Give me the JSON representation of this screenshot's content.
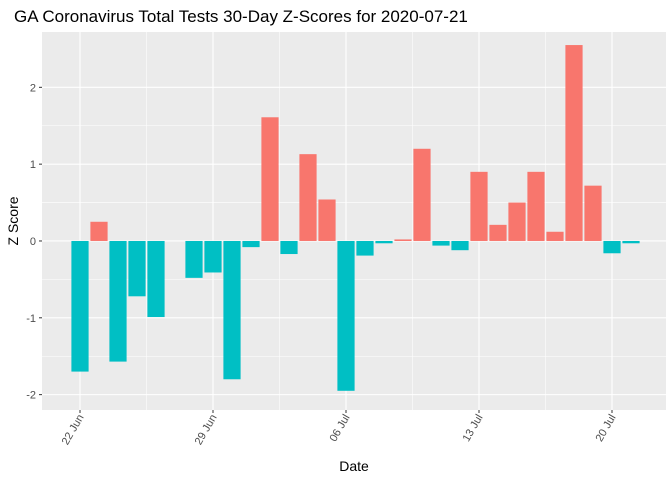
{
  "chart_data": {
    "type": "bar",
    "title": "GA Coronavirus Total Tests 30-Day Z-Scores for 2020-07-21",
    "xlabel": "Date",
    "ylabel": "Z Score",
    "ylim": [
      -2.2,
      2.72
    ],
    "yticks": [
      -2,
      -1,
      0,
      1,
      2
    ],
    "xticks": [
      {
        "date": "2020-06-22",
        "label": "22 Jun"
      },
      {
        "date": "2020-06-29",
        "label": "29 Jun"
      },
      {
        "date": "2020-07-06",
        "label": "06 Jul"
      },
      {
        "date": "2020-07-13",
        "label": "13 Jul"
      },
      {
        "date": "2020-07-20",
        "label": "20 Jul"
      }
    ],
    "grid": true,
    "legend": "none",
    "colors": {
      "positive": "#F8766D",
      "negative": "#00BFC4",
      "panel": "#EBEBEB",
      "grid": "#FFFFFF"
    },
    "bars": [
      {
        "date": "2020-06-22",
        "value": -1.7
      },
      {
        "date": "2020-06-23",
        "value": 0.25
      },
      {
        "date": "2020-06-24",
        "value": -1.57
      },
      {
        "date": "2020-06-25",
        "value": -0.72
      },
      {
        "date": "2020-06-26",
        "value": -0.99
      },
      {
        "date": "2020-06-28",
        "value": -0.48
      },
      {
        "date": "2020-06-29",
        "value": -0.41
      },
      {
        "date": "2020-06-30",
        "value": -1.8
      },
      {
        "date": "2020-07-01",
        "value": -0.08
      },
      {
        "date": "2020-07-02",
        "value": 1.61
      },
      {
        "date": "2020-07-03",
        "value": -0.17
      },
      {
        "date": "2020-07-04",
        "value": 1.13
      },
      {
        "date": "2020-07-05",
        "value": 0.54
      },
      {
        "date": "2020-07-06",
        "value": -1.95
      },
      {
        "date": "2020-07-07",
        "value": -0.19
      },
      {
        "date": "2020-07-08",
        "value": -0.03
      },
      {
        "date": "2020-07-09",
        "value": 0.02
      },
      {
        "date": "2020-07-10",
        "value": 1.2
      },
      {
        "date": "2020-07-11",
        "value": -0.06
      },
      {
        "date": "2020-07-12",
        "value": -0.12
      },
      {
        "date": "2020-07-13",
        "value": 0.9
      },
      {
        "date": "2020-07-14",
        "value": 0.21
      },
      {
        "date": "2020-07-15",
        "value": 0.5
      },
      {
        "date": "2020-07-16",
        "value": 0.9
      },
      {
        "date": "2020-07-17",
        "value": 0.12
      },
      {
        "date": "2020-07-18",
        "value": 2.55
      },
      {
        "date": "2020-07-19",
        "value": 0.72
      },
      {
        "date": "2020-07-20",
        "value": -0.16
      },
      {
        "date": "2020-07-21",
        "value": -0.03
      }
    ]
  }
}
